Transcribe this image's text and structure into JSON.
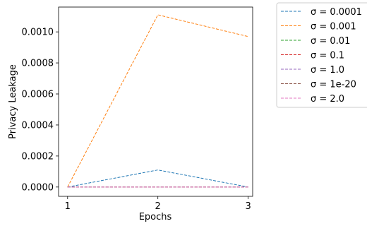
{
  "chart_data": {
    "type": "line",
    "xlabel": "Epochs",
    "ylabel": "Privacy Leakage",
    "x": [
      1,
      2,
      3
    ],
    "xticks": [
      "1",
      "2",
      "3"
    ],
    "yticks": [
      "0.0000",
      "0.0002",
      "0.0004",
      "0.0006",
      "0.0008",
      "0.0010"
    ],
    "ylim": [
      -6e-05,
      0.00116
    ],
    "xlim": [
      0.9,
      3.05
    ],
    "grid": false,
    "legend_position": "outside-right",
    "line_style": "dashed",
    "series": [
      {
        "name": "σ = 0.0001",
        "values": [
          0.0,
          0.00011,
          0.0
        ],
        "color": "#1f77b4"
      },
      {
        "name": "σ = 0.001",
        "values": [
          0.0,
          0.00111,
          0.00097
        ],
        "color": "#ff7f0e"
      },
      {
        "name": "σ = 0.01",
        "values": [
          0.0,
          0.0,
          0.0
        ],
        "color": "#2ca02c"
      },
      {
        "name": "σ = 0.1",
        "values": [
          0.0,
          0.0,
          0.0
        ],
        "color": "#d62728"
      },
      {
        "name": "σ = 1.0",
        "values": [
          0.0,
          0.0,
          0.0
        ],
        "color": "#9467bd"
      },
      {
        "name": "σ = 1e-20",
        "values": [
          0.0,
          0.0,
          0.0
        ],
        "color": "#8c564b"
      },
      {
        "name": "σ = 2.0",
        "values": [
          0.0,
          0.0,
          0.0
        ],
        "color": "#e377c2"
      }
    ]
  }
}
